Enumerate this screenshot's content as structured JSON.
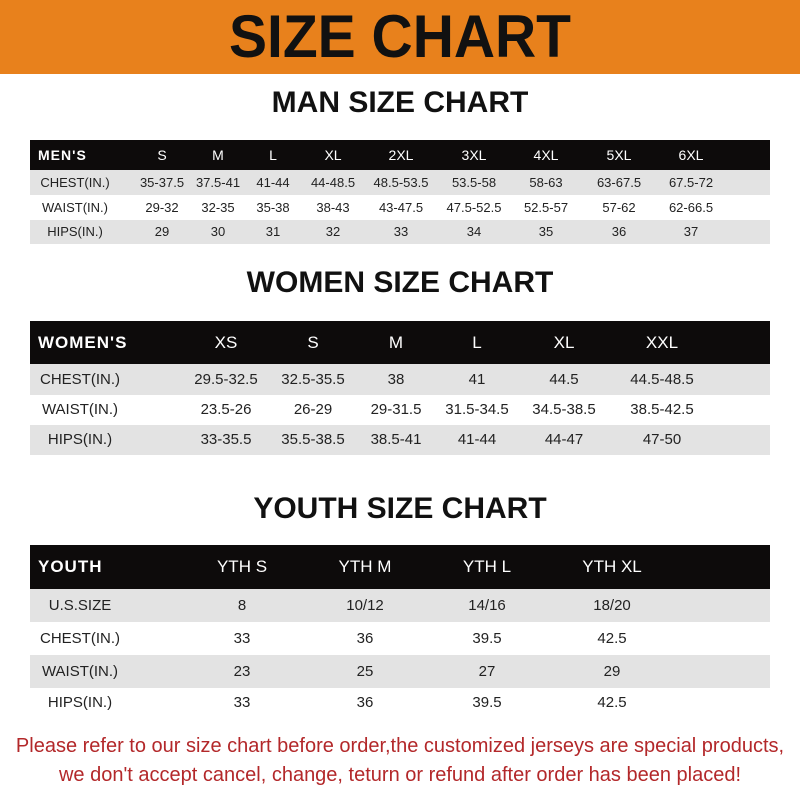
{
  "title": "SIZE CHART",
  "colors": {
    "banner": "#e8811c",
    "header_row": "#0d0b0b",
    "stripe": "#e3e3e3",
    "notice": "#b3282a"
  },
  "men": {
    "title": "MAN SIZE CHART",
    "headers": [
      "MEN'S",
      "S",
      "M",
      "L",
      "XL",
      "2XL",
      "3XL",
      "4XL",
      "5XL",
      "6XL"
    ],
    "rows": [
      [
        "CHEST(IN.)",
        "35-37.5",
        "37.5-41",
        "41-44",
        "44-48.5",
        "48.5-53.5",
        "53.5-58",
        "58-63",
        "63-67.5",
        "67.5-72"
      ],
      [
        "WAIST(IN.)",
        "29-32",
        "32-35",
        "35-38",
        "38-43",
        "43-47.5",
        "47.5-52.5",
        "52.5-57",
        "57-62",
        "62-66.5"
      ],
      [
        "HIPS(IN.)",
        "29",
        "30",
        "31",
        "32",
        "33",
        "34",
        "35",
        "36",
        "37"
      ]
    ]
  },
  "women": {
    "title": "WOMEN SIZE CHART",
    "headers": [
      "WOMEN'S",
      "XS",
      "S",
      "M",
      "L",
      "XL",
      "XXL"
    ],
    "rows": [
      [
        "CHEST(IN.)",
        "29.5-32.5",
        "32.5-35.5",
        "38",
        "41",
        "44.5",
        "44.5-48.5"
      ],
      [
        "WAIST(IN.)",
        "23.5-26",
        "26-29",
        "29-31.5",
        "31.5-34.5",
        "34.5-38.5",
        "38.5-42.5"
      ],
      [
        "HIPS(IN.)",
        "33-35.5",
        "35.5-38.5",
        "38.5-41",
        "41-44",
        "44-47",
        "47-50"
      ]
    ]
  },
  "youth": {
    "title": "YOUTH SIZE CHART",
    "headers": [
      "YOUTH",
      "YTH S",
      "YTH M",
      "YTH L",
      "YTH XL"
    ],
    "rows": [
      [
        "U.S.SIZE",
        "8",
        "10/12",
        "14/16",
        "18/20"
      ],
      [
        "CHEST(IN.)",
        "33",
        "36",
        "39.5",
        "42.5"
      ],
      [
        "WAIST(IN.)",
        "23",
        "25",
        "27",
        "29"
      ],
      [
        "HIPS(IN.)",
        "33",
        "36",
        "39.5",
        "42.5"
      ]
    ]
  },
  "notice": {
    "line1": "Please refer to our size chart before order,the customized jerseys are special products,",
    "line2": "we don't accept cancel, change, teturn or refund after order has been placed!"
  }
}
